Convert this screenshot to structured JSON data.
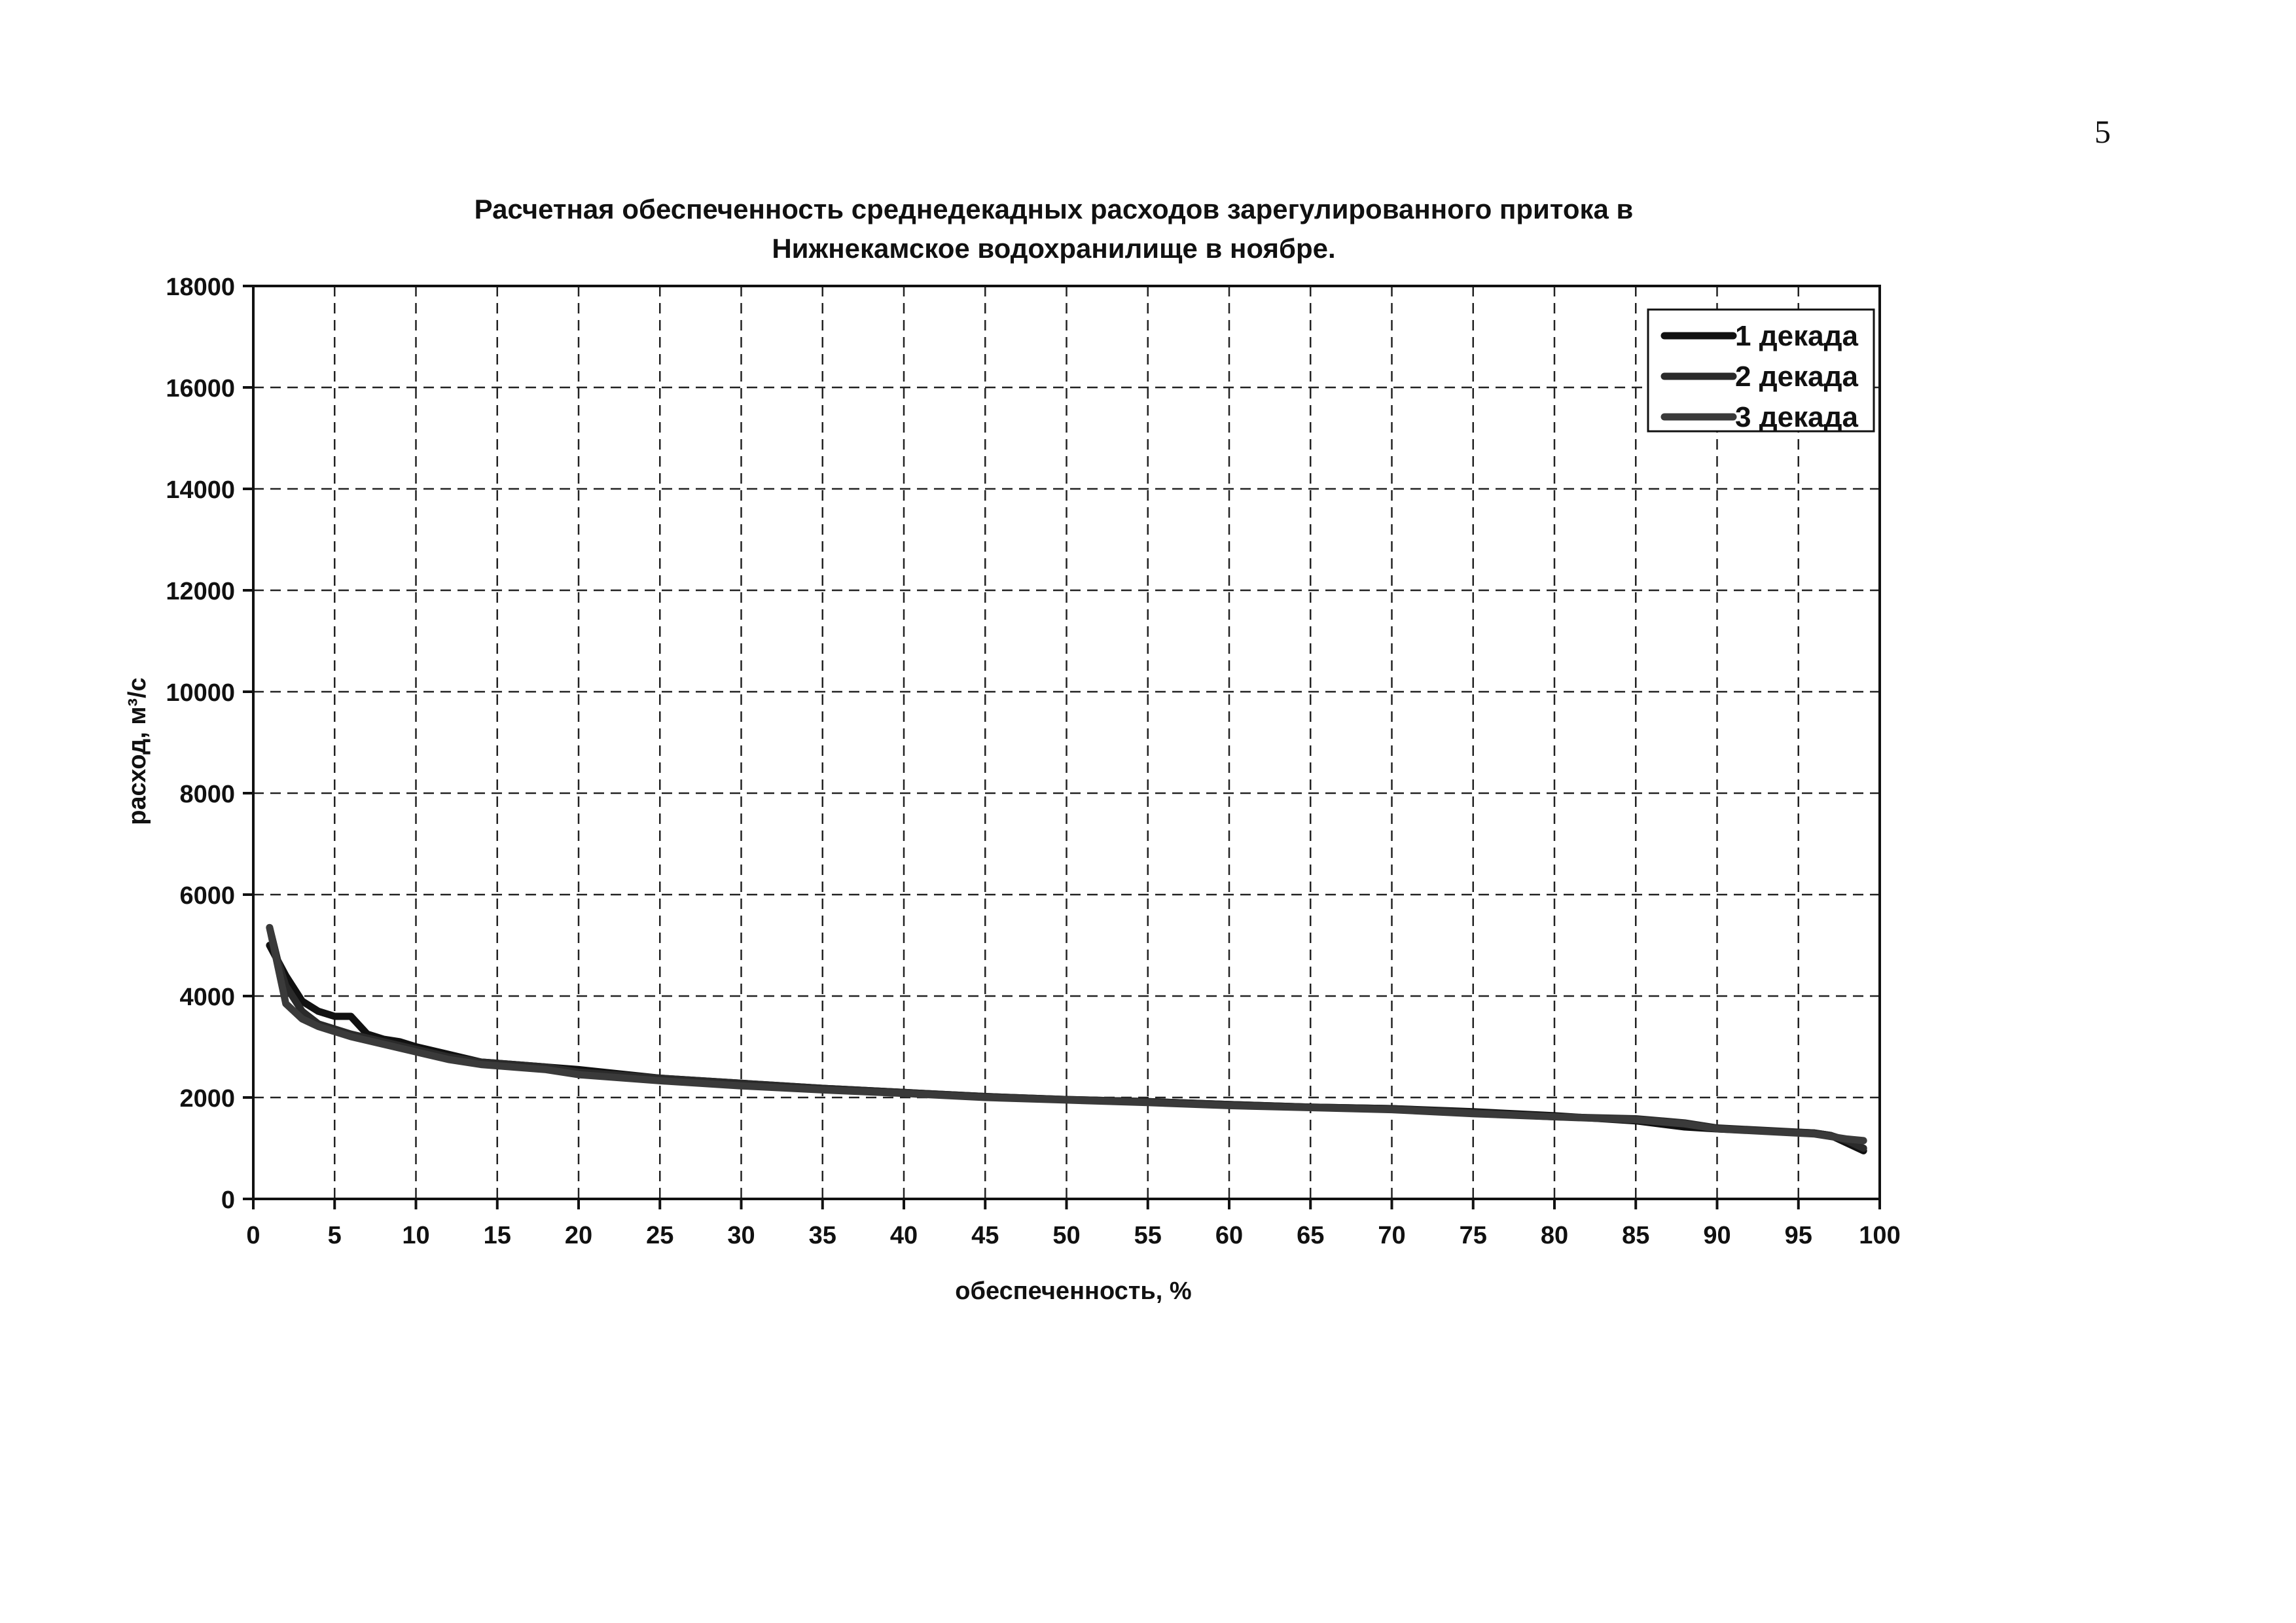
{
  "page_number": "5",
  "chart_data": {
    "type": "line",
    "title_line1": "Расчетная обеспеченность среднедекадных расходов зарегулированного притока в",
    "title_line2": "Нижнекамское водохранилище в ноябре.",
    "xlabel": "обеспеченность, %",
    "ylabel": "расход, м³/с",
    "xlim": [
      0,
      100
    ],
    "ylim": [
      0,
      18000
    ],
    "xticks": [
      0,
      5,
      10,
      15,
      20,
      25,
      30,
      35,
      40,
      45,
      50,
      55,
      60,
      65,
      70,
      75,
      80,
      85,
      90,
      95,
      100
    ],
    "yticks": [
      0,
      2000,
      4000,
      6000,
      8000,
      10000,
      12000,
      14000,
      16000,
      18000
    ],
    "grid": true,
    "legend_position": "top-right",
    "series": [
      {
        "name": "1 декада",
        "color": "#111111",
        "x": [
          1,
          2,
          3,
          4,
          5,
          6,
          7,
          8,
          9,
          10,
          12,
          14,
          16,
          18,
          20,
          25,
          30,
          35,
          40,
          45,
          50,
          55,
          60,
          65,
          70,
          75,
          80,
          85,
          88,
          90,
          93,
          96,
          97,
          98,
          99
        ],
        "y": [
          5000,
          4400,
          3900,
          3700,
          3600,
          3600,
          3250,
          3150,
          3100,
          3000,
          2850,
          2700,
          2650,
          2600,
          2550,
          2380,
          2280,
          2180,
          2100,
          2020,
          1960,
          1920,
          1860,
          1810,
          1780,
          1720,
          1640,
          1540,
          1420,
          1380,
          1340,
          1300,
          1250,
          1100,
          950
        ]
      },
      {
        "name": "2 декада",
        "color": "#2a2a2a",
        "x": [
          1,
          1.5,
          2,
          3,
          4,
          5,
          6,
          8,
          10,
          12,
          14,
          16,
          18,
          20,
          25,
          30,
          35,
          40,
          45,
          50,
          55,
          60,
          65,
          70,
          75,
          80,
          85,
          88,
          90,
          93,
          96,
          97,
          98,
          99
        ],
        "y": [
          5350,
          4700,
          4200,
          3700,
          3450,
          3350,
          3250,
          3100,
          2950,
          2800,
          2700,
          2650,
          2600,
          2500,
          2380,
          2280,
          2180,
          2100,
          2020,
          1960,
          1920,
          1860,
          1810,
          1780,
          1700,
          1620,
          1580,
          1500,
          1400,
          1350,
          1300,
          1250,
          1150,
          1000
        ]
      },
      {
        "name": "3 декада",
        "color": "#3a3a3a",
        "x": [
          1,
          1.5,
          2,
          3,
          4,
          5,
          6,
          8,
          10,
          12,
          14,
          16,
          18,
          20,
          25,
          30,
          35,
          40,
          45,
          50,
          55,
          60,
          65,
          70,
          75,
          80,
          85,
          88,
          90,
          93,
          96,
          97,
          98,
          99
        ],
        "y": [
          5350,
          4600,
          3850,
          3550,
          3400,
          3300,
          3200,
          3050,
          2900,
          2750,
          2650,
          2600,
          2550,
          2450,
          2330,
          2230,
          2150,
          2080,
          2000,
          1950,
          1900,
          1840,
          1800,
          1760,
          1680,
          1620,
          1560,
          1480,
          1380,
          1330,
          1280,
          1230,
          1180,
          1150
        ]
      }
    ]
  }
}
